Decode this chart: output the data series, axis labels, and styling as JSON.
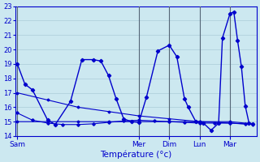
{
  "title": "Température (°c)",
  "bg_color": "#cce8f0",
  "grid_color": "#aaccd8",
  "line_color": "#0000cc",
  "x_tick_labels": [
    "Sam",
    "Mer",
    "Dim",
    "Lun",
    "Mar"
  ],
  "x_tick_positions": [
    0,
    32,
    40,
    48,
    56
  ],
  "xlim": [
    -0.5,
    63
  ],
  "ylim": [
    14,
    23
  ],
  "yticks": [
    14,
    15,
    16,
    17,
    18,
    19,
    20,
    21,
    22,
    23
  ],
  "series2_x": [
    0,
    4,
    8,
    12,
    16,
    20,
    24,
    28,
    32,
    36,
    40,
    44,
    48,
    52,
    56,
    60
  ],
  "series2_y": [
    15.6,
    15.1,
    14.9,
    14.8,
    14.8,
    14.85,
    14.95,
    15.05,
    15.1,
    15.05,
    15.0,
    14.95,
    14.9,
    14.9,
    14.9,
    14.85
  ],
  "series3_x": [
    0,
    8,
    16,
    24,
    32,
    40,
    48,
    56,
    62
  ],
  "series3_y": [
    15.0,
    15.0,
    15.0,
    15.0,
    15.0,
    15.0,
    15.0,
    15.0,
    14.85
  ],
  "series4_x": [
    0,
    8,
    16,
    24,
    32,
    40,
    48,
    56,
    62
  ],
  "series4_y": [
    17.0,
    16.5,
    16.0,
    15.7,
    15.4,
    15.2,
    15.0,
    14.9,
    14.8
  ],
  "main_x": [
    0,
    2,
    4,
    8,
    10,
    14,
    17,
    20,
    22,
    24,
    26,
    28,
    30,
    32,
    34,
    37,
    40,
    42,
    44,
    45,
    47,
    49,
    51,
    53,
    54,
    56,
    57,
    58,
    59,
    60,
    61,
    62
  ],
  "main_y": [
    19.0,
    17.6,
    17.2,
    15.1,
    14.8,
    16.4,
    19.3,
    19.3,
    19.2,
    18.2,
    16.6,
    15.2,
    15.0,
    14.95,
    16.7,
    19.9,
    20.3,
    19.5,
    16.6,
    16.0,
    15.0,
    14.9,
    14.4,
    14.9,
    20.8,
    22.5,
    22.6,
    20.6,
    18.8,
    16.1,
    14.9,
    14.85
  ]
}
